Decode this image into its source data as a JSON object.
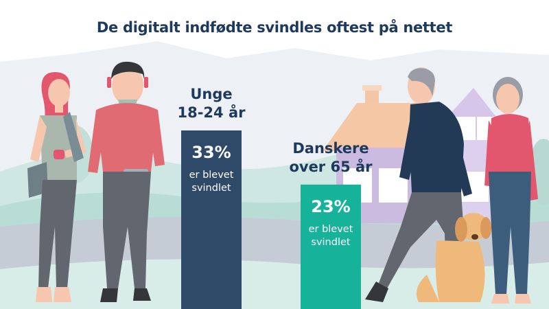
{
  "title": "De digitalt indfødte svindles oftest på nettet",
  "chart_data": {
    "type": "bar",
    "categories": [
      "Unge 18-24 år",
      "Danskere over 65 år"
    ],
    "category_lines": [
      [
        "Unge",
        "18-24 år"
      ],
      [
        "Danskere",
        "over 65 år"
      ]
    ],
    "values": [
      33,
      23
    ],
    "value_labels": [
      "33%",
      "23%"
    ],
    "caption_lines": [
      [
        "er blevet",
        "svindlet"
      ],
      [
        "er blevet",
        "svindlet"
      ]
    ],
    "unit": "%",
    "colors": [
      "#2e4a68",
      "#16b39a"
    ]
  },
  "colors": {
    "title": "#1d3a5c",
    "bar_old": "#2e4a68",
    "bar_young": "#16b39a"
  },
  "illustrations": [
    "young-woman",
    "young-man",
    "house",
    "elderly-man",
    "elderly-woman",
    "dog"
  ]
}
